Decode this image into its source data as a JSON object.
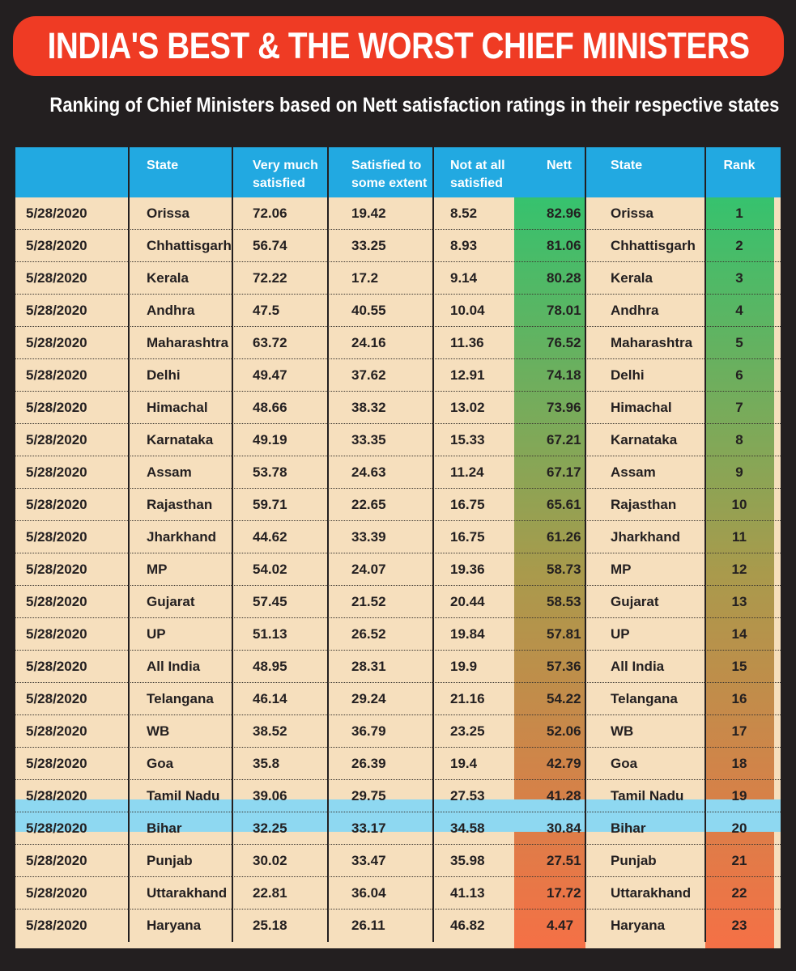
{
  "title": "INDIA'S BEST & THE WORST CHIEF MINISTERS",
  "subtitle": "Ranking of Chief Ministers based on Nett satisfaction ratings in their respective states",
  "colors": {
    "background": "#231f20",
    "banner": "#ef3b24",
    "header": "#22a9e1",
    "row": "#f6dfbd",
    "highlight": "#8ed8f1",
    "gradient_top": "#36c26e",
    "gradient_mid": "#a99a4c",
    "gradient_bottom": "#f57046"
  },
  "chart_data": {
    "type": "table",
    "columns": [
      "",
      "State",
      "Very much\nsatisfied",
      "Satisfied to\nsome extent",
      "Not at all\nsatisfied",
      "Nett",
      "State",
      "Rank"
    ],
    "rows": [
      [
        "5/28/2020",
        "Orissa",
        "72.06",
        "19.42",
        "8.52",
        "82.96",
        "Orissa",
        "1"
      ],
      [
        "5/28/2020",
        "Chhattisgarh",
        "56.74",
        "33.25",
        "8.93",
        "81.06",
        "Chhattisgarh",
        "2"
      ],
      [
        "5/28/2020",
        "Kerala",
        "72.22",
        "17.2",
        "9.14",
        "80.28",
        "Kerala",
        "3"
      ],
      [
        "5/28/2020",
        "Andhra",
        "47.5",
        "40.55",
        "10.04",
        "78.01",
        "Andhra",
        "4"
      ],
      [
        "5/28/2020",
        "Maharashtra",
        "63.72",
        "24.16",
        "11.36",
        "76.52",
        "Maharashtra",
        "5"
      ],
      [
        "5/28/2020",
        "Delhi",
        "49.47",
        "37.62",
        "12.91",
        "74.18",
        "Delhi",
        "6"
      ],
      [
        "5/28/2020",
        "Himachal",
        "48.66",
        "38.32",
        "13.02",
        "73.96",
        "Himachal",
        "7"
      ],
      [
        "5/28/2020",
        "Karnataka",
        "49.19",
        "33.35",
        "15.33",
        "67.21",
        "Karnataka",
        "8"
      ],
      [
        "5/28/2020",
        "Assam",
        "53.78",
        "24.63",
        "11.24",
        "67.17",
        "Assam",
        "9"
      ],
      [
        "5/28/2020",
        "Rajasthan",
        "59.71",
        "22.65",
        "16.75",
        "65.61",
        "Rajasthan",
        "10"
      ],
      [
        "5/28/2020",
        "Jharkhand",
        "44.62",
        "33.39",
        "16.75",
        "61.26",
        "Jharkhand",
        "11"
      ],
      [
        "5/28/2020",
        "MP",
        "54.02",
        "24.07",
        "19.36",
        "58.73",
        "MP",
        "12"
      ],
      [
        "5/28/2020",
        "Gujarat",
        "57.45",
        "21.52",
        "20.44",
        "58.53",
        "Gujarat",
        "13"
      ],
      [
        "5/28/2020",
        "UP",
        "51.13",
        "26.52",
        "19.84",
        "57.81",
        "UP",
        "14"
      ],
      [
        "5/28/2020",
        "All India",
        "48.95",
        "28.31",
        "19.9",
        "57.36",
        "All India",
        "15"
      ],
      [
        "5/28/2020",
        "Telangana",
        "46.14",
        "29.24",
        "21.16",
        "54.22",
        "Telangana",
        "16"
      ],
      [
        "5/28/2020",
        "WB",
        "38.52",
        "36.79",
        "23.25",
        "52.06",
        "WB",
        "17"
      ],
      [
        "5/28/2020",
        "Goa",
        "35.8",
        "26.39",
        "19.4",
        "42.79",
        "Goa",
        "18"
      ],
      [
        "5/28/2020",
        "Tamil Nadu",
        "39.06",
        "29.75",
        "27.53",
        "41.28",
        "Tamil Nadu",
        "19"
      ],
      [
        "5/28/2020",
        "Bihar",
        "32.25",
        "33.17",
        "34.58",
        "30.84",
        "Bihar",
        "20"
      ],
      [
        "5/28/2020",
        "Punjab",
        "30.02",
        "33.47",
        "35.98",
        "27.51",
        "Punjab",
        "21"
      ],
      [
        "5/28/2020",
        "Uttarakhand",
        "22.81",
        "36.04",
        "41.13",
        "17.72",
        "Uttarakhand",
        "22"
      ],
      [
        "5/28/2020",
        "Haryana",
        "25.18",
        "26.11",
        "46.82",
        "4.47",
        "Haryana",
        "23"
      ]
    ],
    "highlight_row": "All India"
  }
}
